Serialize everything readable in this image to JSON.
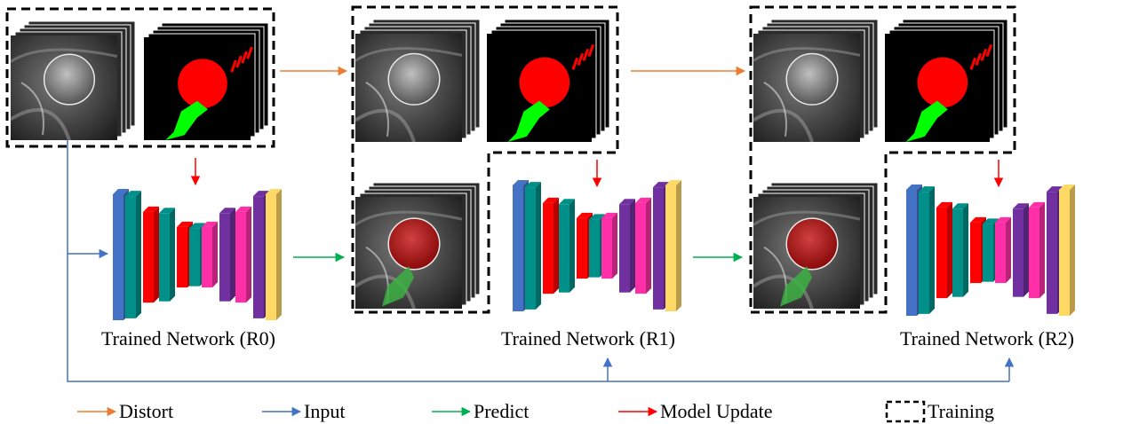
{
  "networks": [
    {
      "label": "Trained Network (R0)"
    },
    {
      "label": "Trained Network (R1)"
    },
    {
      "label": "Trained Network (R2)"
    }
  ],
  "legend": {
    "distort": "Distort",
    "input": "Input",
    "predict": "Predict",
    "model_update": "Model Update",
    "training": "Training"
  },
  "colors": {
    "distort": "#ed7d31",
    "input": "#4472c4",
    "predict": "#00b050",
    "model_update": "#ff0000",
    "mask_foreground": "#00ff00",
    "mask_head": "#ff0000",
    "layer_blue": "#4472c4",
    "layer_teal": "#00908a",
    "layer_red": "#ff0000",
    "layer_magenta": "#ff2fa8",
    "layer_purple": "#7030a0",
    "layer_yellow": "#ffd966"
  }
}
